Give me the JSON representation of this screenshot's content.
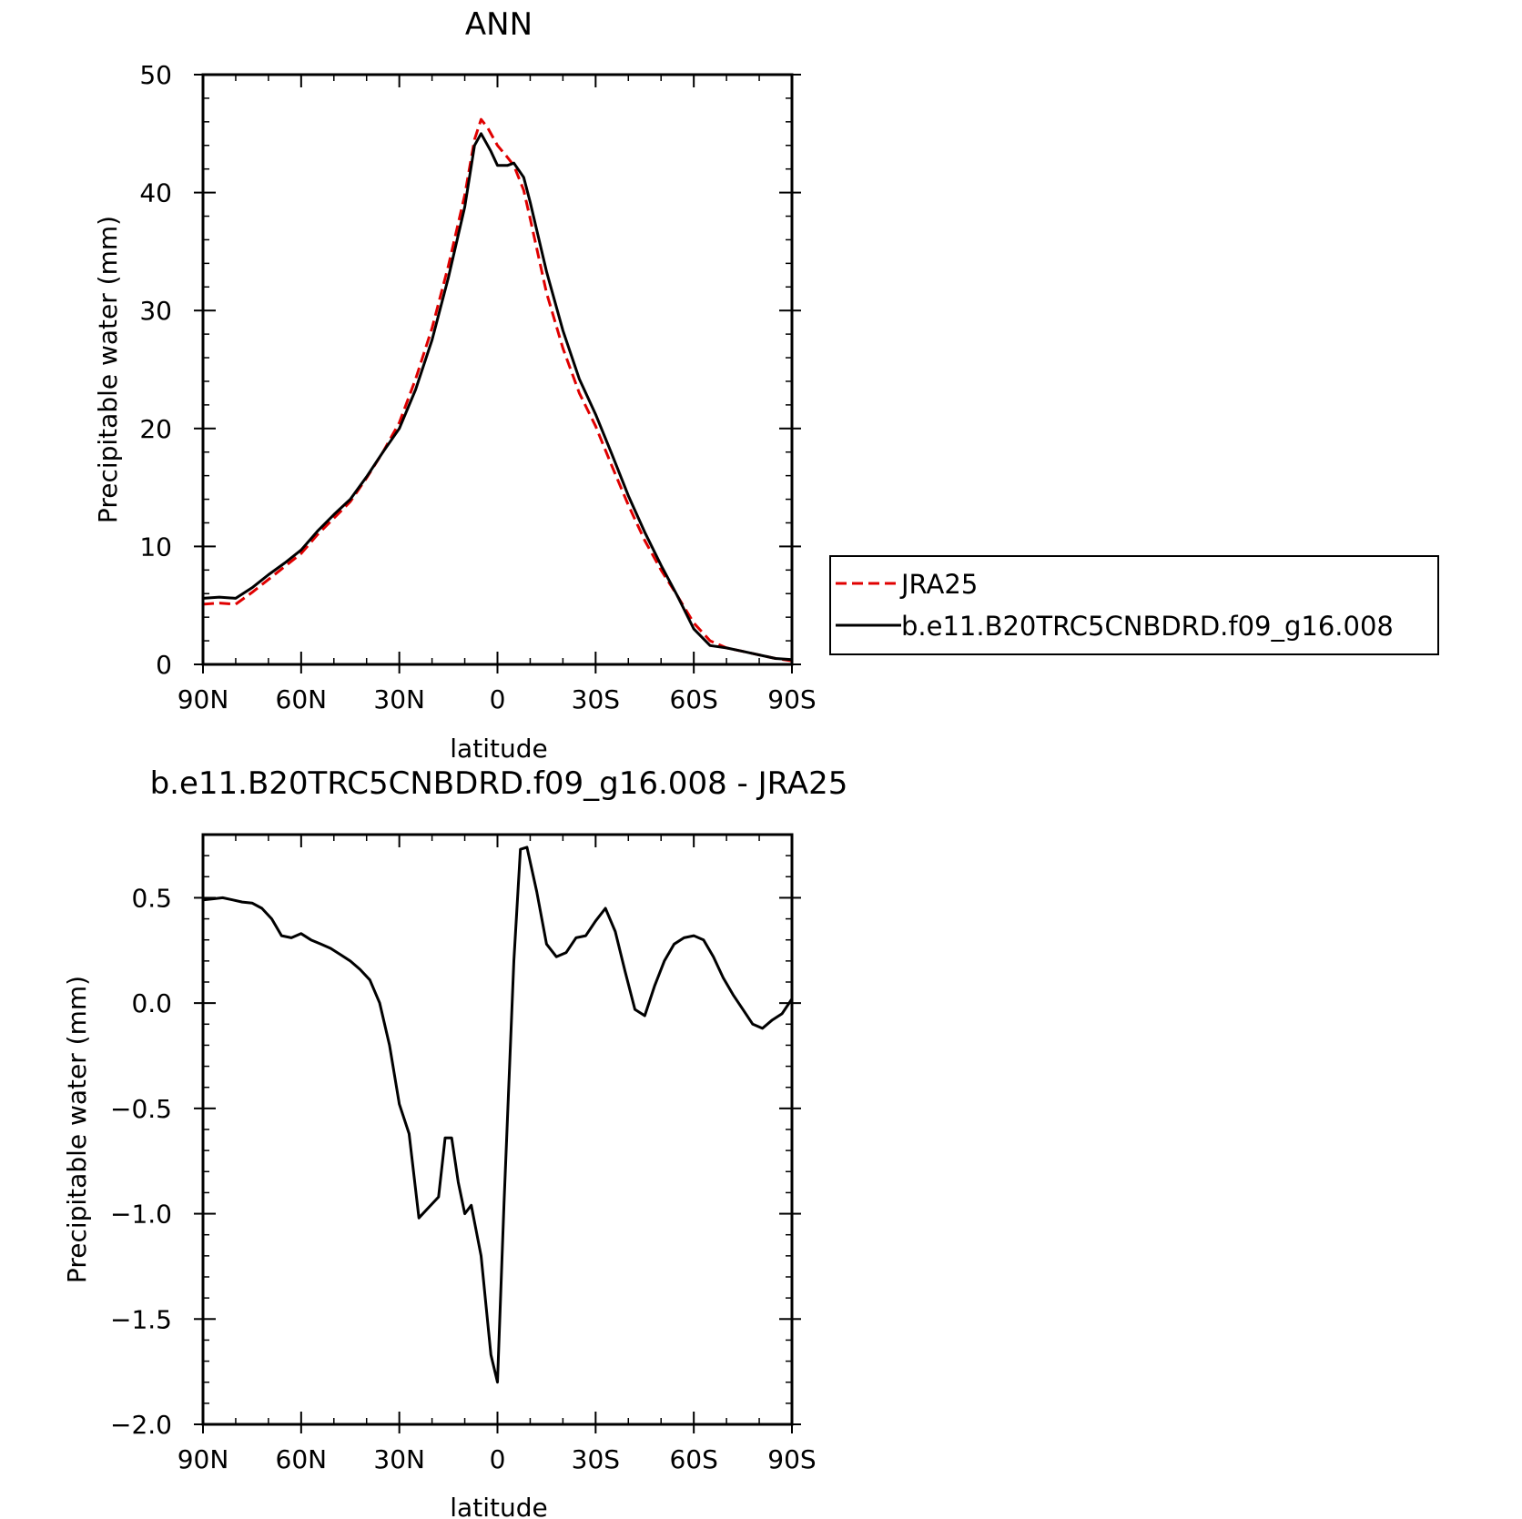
{
  "chart_data": [
    {
      "type": "line",
      "title": "ANN",
      "xlabel": "latitude",
      "ylabel": "Precipitable water (mm)",
      "x_ticks": [
        {
          "value": -90,
          "label": "90N"
        },
        {
          "value": -60,
          "label": "60N"
        },
        {
          "value": -30,
          "label": "30N"
        },
        {
          "value": 0,
          "label": "0"
        },
        {
          "value": 30,
          "label": "30S"
        },
        {
          "value": 60,
          "label": "60S"
        },
        {
          "value": 90,
          "label": "90S"
        }
      ],
      "y_ticks": [
        {
          "value": 0,
          "label": "0"
        },
        {
          "value": 10,
          "label": "10"
        },
        {
          "value": 20,
          "label": "20"
        },
        {
          "value": 30,
          "label": "30"
        },
        {
          "value": 40,
          "label": "40"
        },
        {
          "value": 50,
          "label": "50"
        }
      ],
      "xlim": [
        -90,
        90
      ],
      "ylim": [
        0,
        50
      ],
      "legend": {
        "placement": "right",
        "entries": [
          "JRA25",
          "b.e11.B20TRC5CNBDRD.f09_g16.008"
        ]
      },
      "series": [
        {
          "name": "JRA25",
          "color": "#e00000",
          "dash": "dashed",
          "points": [
            [
              -90,
              5.1
            ],
            [
              -85,
              5.2
            ],
            [
              -80,
              5.1
            ],
            [
              -75,
              6.1
            ],
            [
              -70,
              7.2
            ],
            [
              -65,
              8.3
            ],
            [
              -60,
              9.4
            ],
            [
              -55,
              11.0
            ],
            [
              -50,
              12.4
            ],
            [
              -45,
              13.8
            ],
            [
              -40,
              15.8
            ],
            [
              -35,
              18.0
            ],
            [
              -30,
              20.5
            ],
            [
              -25,
              24.2
            ],
            [
              -20,
              28.5
            ],
            [
              -15,
              33.8
            ],
            [
              -10,
              39.8
            ],
            [
              -7,
              44.5
            ],
            [
              -5,
              46.2
            ],
            [
              -3,
              45.5
            ],
            [
              0,
              44.0
            ],
            [
              3,
              43.0
            ],
            [
              5,
              42.3
            ],
            [
              8,
              40.2
            ],
            [
              10,
              37.8
            ],
            [
              15,
              31.5
            ],
            [
              20,
              26.8
            ],
            [
              25,
              23.0
            ],
            [
              30,
              20.2
            ],
            [
              35,
              16.8
            ],
            [
              40,
              13.5
            ],
            [
              45,
              10.5
            ],
            [
              50,
              8.0
            ],
            [
              55,
              5.8
            ],
            [
              60,
              3.5
            ],
            [
              65,
              2.0
            ],
            [
              70,
              1.4
            ],
            [
              75,
              1.1
            ],
            [
              80,
              0.8
            ],
            [
              85,
              0.5
            ],
            [
              90,
              0.3
            ]
          ]
        },
        {
          "name": "b.e11.B20TRC5CNBDRD.f09_g16.008",
          "color": "#000000",
          "dash": "solid",
          "points": [
            [
              -90,
              5.6
            ],
            [
              -85,
              5.7
            ],
            [
              -80,
              5.6
            ],
            [
              -75,
              6.5
            ],
            [
              -70,
              7.6
            ],
            [
              -65,
              8.6
            ],
            [
              -60,
              9.7
            ],
            [
              -55,
              11.3
            ],
            [
              -50,
              12.7
            ],
            [
              -45,
              14.0
            ],
            [
              -40,
              15.9
            ],
            [
              -35,
              18.0
            ],
            [
              -30,
              20.0
            ],
            [
              -25,
              23.3
            ],
            [
              -20,
              27.5
            ],
            [
              -15,
              32.8
            ],
            [
              -10,
              38.8
            ],
            [
              -7,
              44.0
            ],
            [
              -5,
              45.0
            ],
            [
              -2,
              43.5
            ],
            [
              0,
              42.3
            ],
            [
              3,
              42.3
            ],
            [
              5,
              42.5
            ],
            [
              8,
              41.3
            ],
            [
              10,
              39.2
            ],
            [
              15,
              33.3
            ],
            [
              20,
              28.3
            ],
            [
              25,
              24.2
            ],
            [
              30,
              21.2
            ],
            [
              35,
              17.8
            ],
            [
              40,
              14.3
            ],
            [
              45,
              11.2
            ],
            [
              50,
              8.4
            ],
            [
              55,
              5.8
            ],
            [
              60,
              3.0
            ],
            [
              65,
              1.6
            ],
            [
              70,
              1.4
            ],
            [
              75,
              1.1
            ],
            [
              80,
              0.8
            ],
            [
              85,
              0.5
            ],
            [
              90,
              0.4
            ]
          ]
        }
      ]
    },
    {
      "type": "line",
      "title": "b.e11.B20TRC5CNBDRD.f09_g16.008 - JRA25",
      "xlabel": "latitude",
      "ylabel": "Precipitable water (mm)",
      "x_ticks": [
        {
          "value": -90,
          "label": "90N"
        },
        {
          "value": -60,
          "label": "60N"
        },
        {
          "value": -30,
          "label": "30N"
        },
        {
          "value": 0,
          "label": "0"
        },
        {
          "value": 30,
          "label": "30S"
        },
        {
          "value": 60,
          "label": "60S"
        },
        {
          "value": 90,
          "label": "90S"
        }
      ],
      "y_ticks": [
        {
          "value": -2.0,
          "label": "−2.0"
        },
        {
          "value": -1.5,
          "label": "−1.5"
        },
        {
          "value": -1.0,
          "label": "−1.0"
        },
        {
          "value": -0.5,
          "label": "−0.5"
        },
        {
          "value": 0.0,
          "label": "0.0"
        },
        {
          "value": 0.5,
          "label": "0.5"
        }
      ],
      "xlim": [
        -90,
        90
      ],
      "ylim": [
        -2.0,
        0.8
      ],
      "series": [
        {
          "color": "#000000",
          "dash": "solid",
          "points": [
            [
              -90,
              0.49
            ],
            [
              -87,
              0.495
            ],
            [
              -84,
              0.5
            ],
            [
              -81,
              0.49
            ],
            [
              -78,
              0.48
            ],
            [
              -75,
              0.475
            ],
            [
              -72,
              0.45
            ],
            [
              -69,
              0.4
            ],
            [
              -66,
              0.32
            ],
            [
              -63,
              0.31
            ],
            [
              -60,
              0.33
            ],
            [
              -57,
              0.3
            ],
            [
              -54,
              0.28
            ],
            [
              -51,
              0.26
            ],
            [
              -48,
              0.23
            ],
            [
              -45,
              0.2
            ],
            [
              -42,
              0.16
            ],
            [
              -39,
              0.11
            ],
            [
              -36,
              0.0
            ],
            [
              -33,
              -0.2
            ],
            [
              -30,
              -0.48
            ],
            [
              -27,
              -0.62
            ],
            [
              -24,
              -1.02
            ],
            [
              -21,
              -0.97
            ],
            [
              -18,
              -0.92
            ],
            [
              -16,
              -0.64
            ],
            [
              -14,
              -0.64
            ],
            [
              -12,
              -0.85
            ],
            [
              -10,
              -1.0
            ],
            [
              -8,
              -0.96
            ],
            [
              -5,
              -1.2
            ],
            [
              -2,
              -1.67
            ],
            [
              0,
              -1.8
            ],
            [
              2,
              -0.95
            ],
            [
              5,
              0.2
            ],
            [
              7,
              0.73
            ],
            [
              9,
              0.74
            ],
            [
              12,
              0.53
            ],
            [
              15,
              0.28
            ],
            [
              18,
              0.22
            ],
            [
              21,
              0.24
            ],
            [
              24,
              0.31
            ],
            [
              27,
              0.32
            ],
            [
              30,
              0.39
            ],
            [
              33,
              0.45
            ],
            [
              36,
              0.34
            ],
            [
              39,
              0.15
            ],
            [
              42,
              -0.03
            ],
            [
              45,
              -0.06
            ],
            [
              48,
              0.08
            ],
            [
              51,
              0.2
            ],
            [
              54,
              0.28
            ],
            [
              57,
              0.31
            ],
            [
              60,
              0.32
            ],
            [
              63,
              0.3
            ],
            [
              66,
              0.22
            ],
            [
              69,
              0.12
            ],
            [
              72,
              0.04
            ],
            [
              75,
              -0.03
            ],
            [
              78,
              -0.1
            ],
            [
              81,
              -0.12
            ],
            [
              84,
              -0.08
            ],
            [
              87,
              -0.05
            ],
            [
              90,
              0.02
            ],
            [
              93,
              0.05
            ]
          ]
        }
      ]
    }
  ]
}
